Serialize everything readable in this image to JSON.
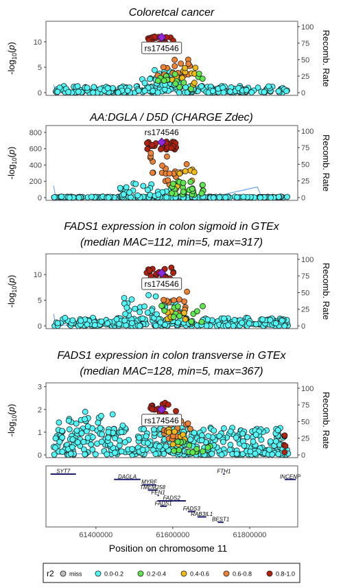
{
  "colors": {
    "r2_bins": [
      "#bdbdbd",
      "#4ff7f7",
      "#5ee84e",
      "#f2bb13",
      "#ee8132",
      "#b5210f"
    ],
    "lead_snp": "#8a2be2",
    "recomb_line": "#6fa8e6",
    "gene_line": "#1c1c6e",
    "frame": "#555555",
    "text": "#000000"
  },
  "legend": {
    "title": "r2",
    "items": [
      "miss",
      "0.0-0.2",
      "0.2-0.4",
      "0.4-0.6",
      "0.6-0.8",
      "0.8-1.0"
    ]
  },
  "chart_data": [
    {
      "type": "scatter",
      "title": "Coloretcal cancer",
      "ylabel": "-log10(p)",
      "y2label": "Recomb. Rate",
      "ylim": [
        0,
        13.5
      ],
      "yticks": [
        0,
        5,
        10
      ],
      "y2lim": [
        0,
        104
      ],
      "y2ticks": [
        0,
        25,
        50,
        75,
        100
      ],
      "lead_snp": {
        "label": "rs174546",
        "x": 61571000,
        "y": 10.9
      },
      "clusters": [
        {
          "x": [
            61290000,
            61900000
          ],
          "y": [
            0,
            1.3
          ],
          "bin": 1,
          "n": 230
        },
        {
          "x": [
            61520000,
            61620000
          ],
          "y": [
            1.5,
            4.5
          ],
          "bin": 1,
          "n": 25
        },
        {
          "x": [
            61530000,
            61610000
          ],
          "y": [
            8.5,
            11.3
          ],
          "bin": 5,
          "n": 22
        },
        {
          "x": [
            61560000,
            61650000
          ],
          "y": [
            2.0,
            6.5
          ],
          "bin": 4,
          "n": 18
        },
        {
          "x": [
            61565000,
            61660000
          ],
          "y": [
            1.5,
            5.0
          ],
          "bin": 3,
          "n": 12
        },
        {
          "x": [
            61550000,
            61680000
          ],
          "y": [
            0.5,
            4.0
          ],
          "bin": 2,
          "n": 14
        }
      ],
      "recomb": [
        [
          61290000,
          12
        ],
        [
          61295000,
          1
        ],
        [
          61400000,
          2
        ],
        [
          61560000,
          3
        ],
        [
          61600000,
          2
        ],
        [
          61700000,
          3
        ],
        [
          61820000,
          6
        ],
        [
          61830000,
          2
        ],
        [
          61905000,
          3
        ]
      ]
    },
    {
      "type": "scatter",
      "title": "AA:DGLA / D5D (CHARGE Zdec)",
      "ylabel": "-log10(p)",
      "y2label": "Recomb. Rate",
      "ylim": [
        0,
        850
      ],
      "yticks": [
        0,
        200,
        400,
        600,
        800
      ],
      "y2lim": [
        0,
        104
      ],
      "y2ticks": [
        0,
        25,
        50,
        75,
        100
      ],
      "lead_snp": {
        "label": "rs174546",
        "x": 61571000,
        "y": 680
      },
      "clusters": [
        {
          "x": [
            61290000,
            61900000
          ],
          "y": [
            0,
            12
          ],
          "bin": 1,
          "n": 240
        },
        {
          "x": [
            61460000,
            61610000
          ],
          "y": [
            20,
            180
          ],
          "bin": 1,
          "n": 30
        },
        {
          "x": [
            61530000,
            61615000
          ],
          "y": [
            590,
            690
          ],
          "bin": 5,
          "n": 28
        },
        {
          "x": [
            61540000,
            61590000
          ],
          "y": [
            300,
            560
          ],
          "bin": 4,
          "n": 10
        },
        {
          "x": [
            61580000,
            61640000
          ],
          "y": [
            150,
            450
          ],
          "bin": 4,
          "n": 12
        },
        {
          "x": [
            61600000,
            61660000
          ],
          "y": [
            100,
            350
          ],
          "bin": 3,
          "n": 10
        },
        {
          "x": [
            61590000,
            61680000
          ],
          "y": [
            20,
            200
          ],
          "bin": 2,
          "n": 25
        }
      ],
      "recomb": [
        [
          61290000,
          18
        ],
        [
          61295000,
          1
        ],
        [
          61400000,
          2
        ],
        [
          61555000,
          3
        ],
        [
          61600000,
          2
        ],
        [
          61720000,
          3
        ],
        [
          61820000,
          16
        ],
        [
          61830000,
          2
        ],
        [
          61905000,
          3
        ]
      ]
    },
    {
      "type": "scatter",
      "title": "FADS1 expression in colon sigmoid in GTEx",
      "subtitle": "(median MAC=112, min=5, max=317)",
      "ylabel": "-log10(p)",
      "y2label": "Recomb. Rate",
      "ylim": [
        0,
        13.5
      ],
      "yticks": [
        0,
        5,
        10
      ],
      "y2lim": [
        0,
        104
      ],
      "y2ticks": [
        0,
        25,
        50,
        75,
        100
      ],
      "lead_snp": {
        "label": "rs174546",
        "x": 61571000,
        "y": 10.3
      },
      "clusters": [
        {
          "x": [
            61290000,
            61900000
          ],
          "y": [
            0,
            1.6
          ],
          "bin": 1,
          "n": 260
        },
        {
          "x": [
            61470000,
            61620000
          ],
          "y": [
            1.5,
            6.0
          ],
          "bin": 1,
          "n": 30
        },
        {
          "x": [
            61530000,
            61610000
          ],
          "y": [
            8.0,
            11.5
          ],
          "bin": 5,
          "n": 22
        },
        {
          "x": [
            61575000,
            61650000
          ],
          "y": [
            1.0,
            7.5
          ],
          "bin": 4,
          "n": 14
        },
        {
          "x": [
            61580000,
            61640000
          ],
          "y": [
            1.0,
            4.0
          ],
          "bin": 3,
          "n": 8
        },
        {
          "x": [
            61560000,
            61680000
          ],
          "y": [
            0.5,
            4.5
          ],
          "bin": 2,
          "n": 14
        }
      ],
      "recomb": [
        [
          61290000,
          18
        ],
        [
          61295000,
          1
        ],
        [
          61400000,
          2
        ],
        [
          61560000,
          3
        ],
        [
          61600000,
          2
        ],
        [
          61720000,
          3
        ],
        [
          61820000,
          6
        ],
        [
          61830000,
          2
        ],
        [
          61905000,
          3
        ]
      ]
    },
    {
      "type": "scatter",
      "title": "FADS1 expression in colon transverse in GTEx",
      "subtitle": "(median MAC=128, min=5, max=367)",
      "ylabel": "-log10(p)",
      "y2label": "Recomb. Rate",
      "ylim": [
        0,
        3.05
      ],
      "yticks": [
        0,
        1,
        2,
        3
      ],
      "y2lim": [
        0,
        104
      ],
      "y2ticks": [
        0,
        25,
        50,
        75,
        100
      ],
      "lead_snp": {
        "label": "rs174546",
        "x": 61571000,
        "y": 2.0
      },
      "clusters": [
        {
          "x": [
            61290000,
            61900000
          ],
          "y": [
            0,
            1.2
          ],
          "bin": 1,
          "n": 380
        },
        {
          "x": [
            61300000,
            61480000
          ],
          "y": [
            1.0,
            2.0
          ],
          "bin": 1,
          "n": 25
        },
        {
          "x": [
            61540000,
            61610000
          ],
          "y": [
            1.8,
            2.3
          ],
          "bin": 5,
          "n": 14
        },
        {
          "x": [
            61570000,
            61650000
          ],
          "y": [
            0.2,
            1.5
          ],
          "bin": 4,
          "n": 16
        },
        {
          "x": [
            61580000,
            61640000
          ],
          "y": [
            0.4,
            1.2
          ],
          "bin": 3,
          "n": 8
        },
        {
          "x": [
            61580000,
            61700000
          ],
          "y": [
            0.1,
            0.7
          ],
          "bin": 2,
          "n": 14
        },
        {
          "x": [
            61880000,
            61900000
          ],
          "y": [
            0.1,
            0.9
          ],
          "bin": 5,
          "n": 5
        }
      ],
      "recomb": [
        [
          61290000,
          18
        ],
        [
          61295000,
          1
        ],
        [
          61400000,
          2
        ],
        [
          61560000,
          3
        ],
        [
          61600000,
          2
        ],
        [
          61720000,
          3
        ],
        [
          61820000,
          6
        ],
        [
          61830000,
          2
        ],
        [
          61905000,
          3
        ]
      ]
    }
  ],
  "genes": {
    "xlabel": "Position on chromosome 11",
    "xticks": [
      61400000,
      61600000,
      61800000
    ],
    "xlim": [
      61270000,
      61925000
    ],
    "items": [
      {
        "name": "SYT7",
        "start": 61282000,
        "end": 61348000,
        "row": 0
      },
      {
        "name": "FTH1",
        "start": 61731000,
        "end": 61735000,
        "row": 0
      },
      {
        "name": "INCENP",
        "start": 61891000,
        "end": 61920000,
        "row": 1
      },
      {
        "name": "DAGLA",
        "start": 61447000,
        "end": 61516000,
        "row": 1
      },
      {
        "name": "MYRF",
        "start": 61520000,
        "end": 61557000,
        "row": 2
      },
      {
        "name": "TMEM258",
        "start": 61535000,
        "end": 61560000,
        "row": 3
      },
      {
        "name": "FEN1",
        "start": 61560000,
        "end": 61564000,
        "row": 4
      },
      {
        "name": "FADS2",
        "start": 61560000,
        "end": 61634000,
        "row": 5
      },
      {
        "name": "FADS1",
        "start": 61567000,
        "end": 61584000,
        "row": 6
      },
      {
        "name": "FADS3",
        "start": 61639000,
        "end": 61659000,
        "row": 7
      },
      {
        "name": "RAB3IL1",
        "start": 61664000,
        "end": 61687000,
        "row": 8
      },
      {
        "name": "BEST1",
        "start": 61717000,
        "end": 61732000,
        "row": 9
      }
    ]
  }
}
